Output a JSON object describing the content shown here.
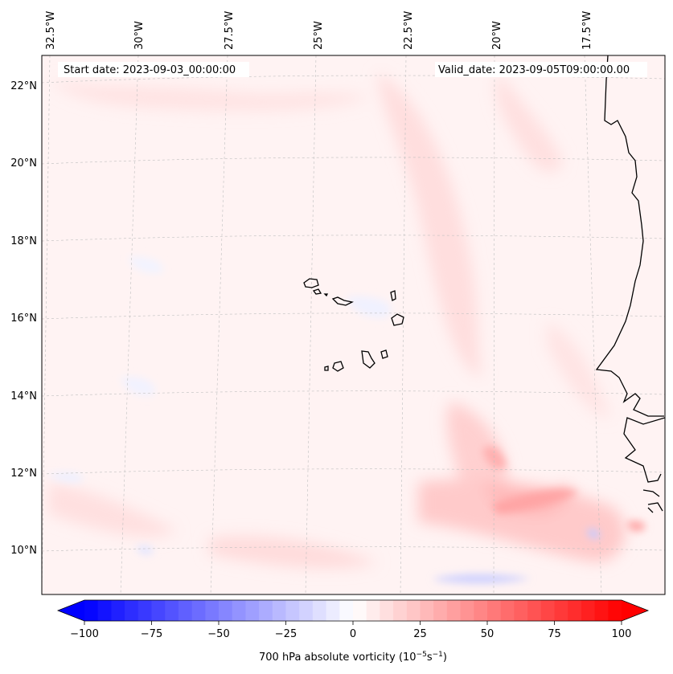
{
  "map": {
    "start_date": "Start date: 2023-09-03_00:00:00",
    "valid_date": "Valid_date: 2023-09-05T09:00:00.00",
    "lon_labels": [
      "32.5°W",
      "30°W",
      "27.5°W",
      "25°W",
      "22.5°W",
      "20°W",
      "17.5°W"
    ],
    "lat_labels": [
      "22°N",
      "20°N",
      "18°N",
      "16°N",
      "14°N",
      "12°N",
      "10°N"
    ],
    "lon_values": [
      -32.5,
      -30,
      -27.5,
      -25,
      -22.5,
      -20,
      -17.5
    ],
    "lat_values": [
      22,
      20,
      18,
      16,
      14,
      12,
      10
    ],
    "extent": {
      "lon_min": -32.7,
      "lon_max": -15.3,
      "lat_min": 8.9,
      "lat_max": 22.8
    },
    "region": "Cape Verde / West Africa coast",
    "colors": {
      "coast": "#000000",
      "grid": "#b0b0b0",
      "pos": "#ff0000",
      "neg": "#0000ff"
    }
  },
  "colorbar": {
    "ticks": [
      "−100",
      "−75",
      "−50",
      "−25",
      "0",
      "25",
      "50",
      "75",
      "100"
    ],
    "tick_values": [
      -100,
      -75,
      -50,
      -25,
      0,
      25,
      50,
      75,
      100
    ],
    "label_main": "700 hPa absolute vorticity (10",
    "label_exp1": "−5",
    "label_mid": "s",
    "label_exp2": "−1",
    "label_end": ")",
    "colormap": "bwr",
    "extend": "both"
  }
}
